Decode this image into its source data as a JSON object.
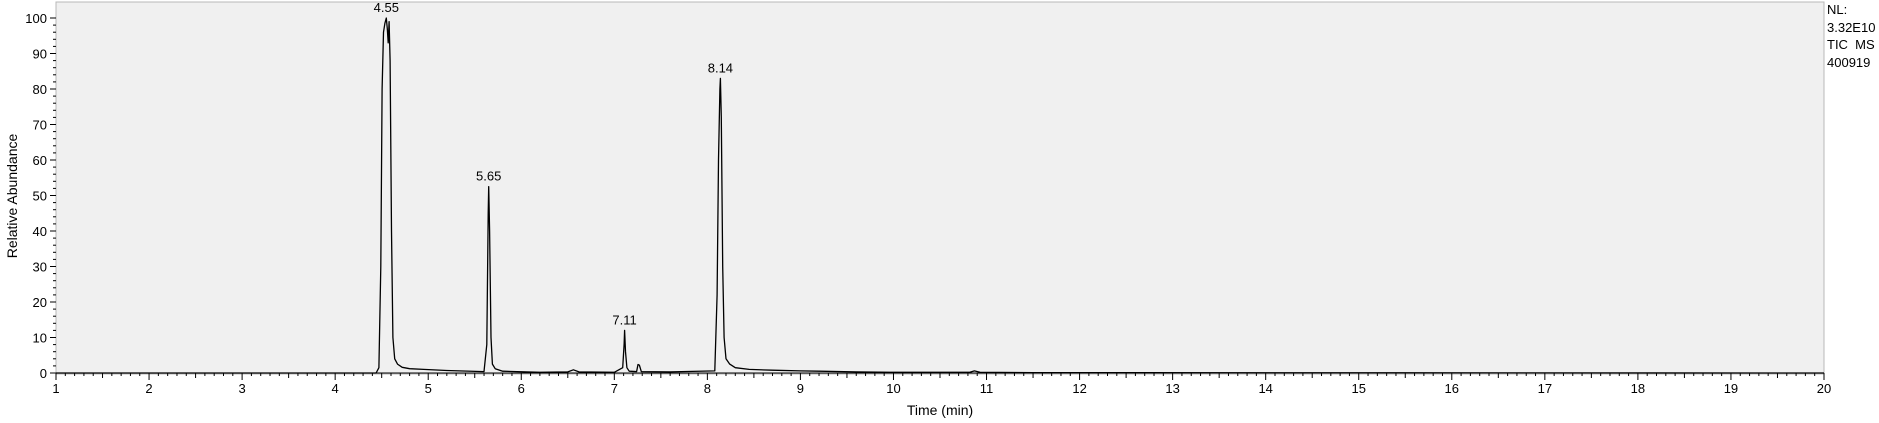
{
  "chart_data": {
    "type": "line",
    "title": "",
    "xlabel": "Time (min)",
    "ylabel": "Relative Abundance",
    "xlim": [
      1,
      20
    ],
    "ylim": [
      0,
      100
    ],
    "x_ticks": [
      "1",
      "2",
      "3",
      "4",
      "5",
      "6",
      "7",
      "8",
      "9",
      "10",
      "11",
      "12",
      "13",
      "14",
      "15",
      "16",
      "17",
      "18",
      "19",
      "20"
    ],
    "y_ticks": [
      "0",
      "10",
      "20",
      "30",
      "40",
      "50",
      "60",
      "70",
      "80",
      "90",
      "100"
    ],
    "grid": false,
    "background": "#f0f0f0",
    "line_color": "#000000",
    "peaks": [
      {
        "x": 4.55,
        "y": 100,
        "label": "4.55"
      },
      {
        "x": 5.65,
        "y": 52.5,
        "label": "5.65"
      },
      {
        "x": 7.11,
        "y": 12,
        "label": "7.11"
      },
      {
        "x": 8.14,
        "y": 83,
        "label": "8.14"
      }
    ],
    "series": [
      {
        "x": [
          1,
          4.44,
          4.47,
          4.49,
          4.505,
          4.52,
          4.535,
          4.55,
          4.56,
          4.57,
          4.58,
          4.59,
          4.605,
          4.62,
          4.64,
          4.67,
          4.72,
          4.8,
          4.95,
          5.2,
          5.6,
          5.63,
          5.645,
          5.65,
          5.66,
          5.675,
          5.69,
          5.72,
          5.8,
          6.2,
          6.5,
          6.56,
          6.62,
          7.0,
          7.09,
          7.105,
          7.11,
          7.12,
          7.135,
          7.16,
          7.24,
          7.255,
          7.27,
          7.29,
          7.6,
          8.08,
          8.105,
          8.12,
          8.135,
          8.14,
          8.15,
          8.165,
          8.18,
          8.2,
          8.24,
          8.3,
          8.45,
          8.7,
          9.0,
          9.2,
          9.6,
          10.0,
          10.82,
          10.87,
          10.93,
          11.5,
          20
        ],
        "y": [
          0,
          0,
          1.5,
          30,
          80,
          96,
          98.5,
          100,
          97,
          93,
          99,
          88,
          40,
          10,
          4,
          2.5,
          1.6,
          1.2,
          1.0,
          0.7,
          0.4,
          8,
          45,
          52.5,
          40,
          10,
          2.5,
          1.2,
          0.5,
          0.2,
          0.3,
          0.9,
          0.3,
          0.2,
          1.5,
          8,
          12,
          6,
          1.5,
          0.5,
          0.4,
          2.4,
          2.2,
          0.4,
          0.3,
          0.6,
          22,
          60,
          80,
          83,
          72,
          30,
          10,
          4,
          2.5,
          1.5,
          1.0,
          0.8,
          0.6,
          0.5,
          0.3,
          0.2,
          0.2,
          0.6,
          0.2,
          0.1,
          0
        ]
      }
    ]
  },
  "info": {
    "nl_label": "NL:",
    "nl_value": "3.32E10",
    "trace": "TIC  MS",
    "file": "400919"
  }
}
